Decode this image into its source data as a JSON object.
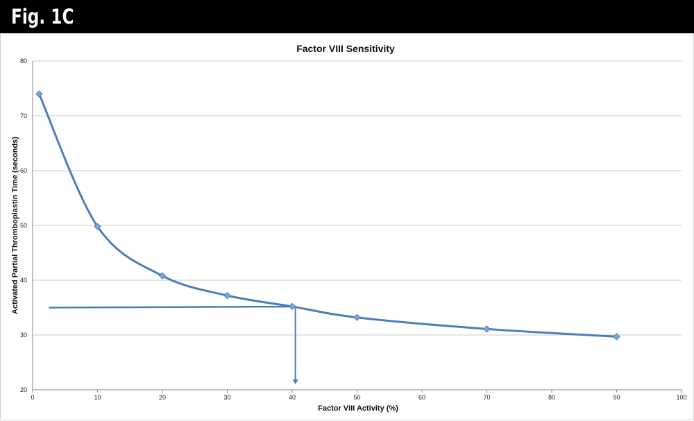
{
  "figure_label": "Fig. 1C",
  "colors": {
    "banner": "#000000",
    "series": "#4a7ebb",
    "marker": "#7ea6d8",
    "grid": "#c8c8c8"
  },
  "chart_data": {
    "type": "line",
    "title": "Factor VIII Sensitivity",
    "xlabel": "Factor VIII Activity (%)",
    "ylabel": "Activated Partial Thromboplastin Time (seconds)",
    "xlim": [
      0,
      100
    ],
    "ylim": [
      20,
      80
    ],
    "x_ticks": [
      0,
      10,
      20,
      30,
      40,
      50,
      60,
      70,
      80,
      90,
      100
    ],
    "y_ticks": [
      20,
      30,
      40,
      50,
      60,
      70,
      80
    ],
    "grid": "horizontal",
    "series": [
      {
        "x": [
          1,
          10,
          20,
          30,
          40,
          50,
          70,
          90
        ],
        "y": [
          74,
          49.8,
          40.8,
          37.2,
          35.2,
          33.2,
          31.1,
          29.7
        ]
      }
    ],
    "annotations": {
      "horizontal_guide": {
        "from_x": 2.5,
        "to_x": 40.5,
        "y": 35
      },
      "vertical_arrow": {
        "x": 40.5,
        "from_y": 35.2,
        "to_y": 21
      }
    }
  }
}
